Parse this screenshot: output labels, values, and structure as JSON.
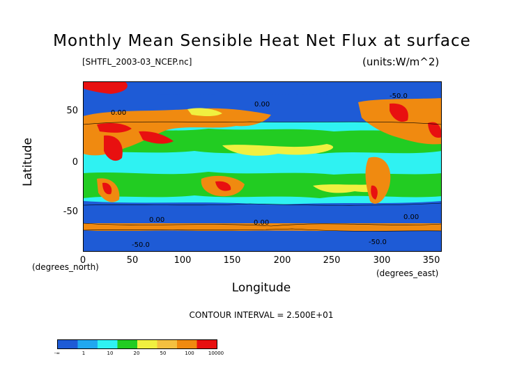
{
  "title": "Monthly Mean Sensible Heat Net Flux at surface",
  "file_label": "[SHTFL_2003-03_NCEP.nc]",
  "units_label": "(units:W/m^2)",
  "y_axis": {
    "label": "Latitude",
    "unit_label": "(degrees_north)",
    "ticks": [
      "50",
      "0",
      "-50"
    ]
  },
  "x_axis": {
    "label": "Longitude",
    "unit_label": "(degrees_east)",
    "ticks": [
      "0",
      "50",
      "100",
      "150",
      "200",
      "250",
      "300",
      "350"
    ]
  },
  "contour_interval": "CONTOUR INTERVAL = 2.500E+01",
  "contour_labels": [
    "0.00",
    "0.00",
    "0.00",
    "0.00",
    "0.00",
    "-50.0",
    "-50.0",
    "-50.0"
  ],
  "colorbar": {
    "labels": [
      "-∞",
      "1",
      "10",
      "20",
      "50",
      "100",
      "10000"
    ],
    "colors": [
      "#1e5bd6",
      "#20a8f0",
      "#2ff2f2",
      "#22cc22",
      "#f0f040",
      "#f4c040",
      "#f08a10",
      "#e81010"
    ]
  },
  "map_data": {
    "lon_range": [
      0,
      360
    ],
    "lat_range": [
      -90,
      90
    ],
    "variable": "Sensible Heat Net Flux",
    "units": "W/m^2"
  }
}
